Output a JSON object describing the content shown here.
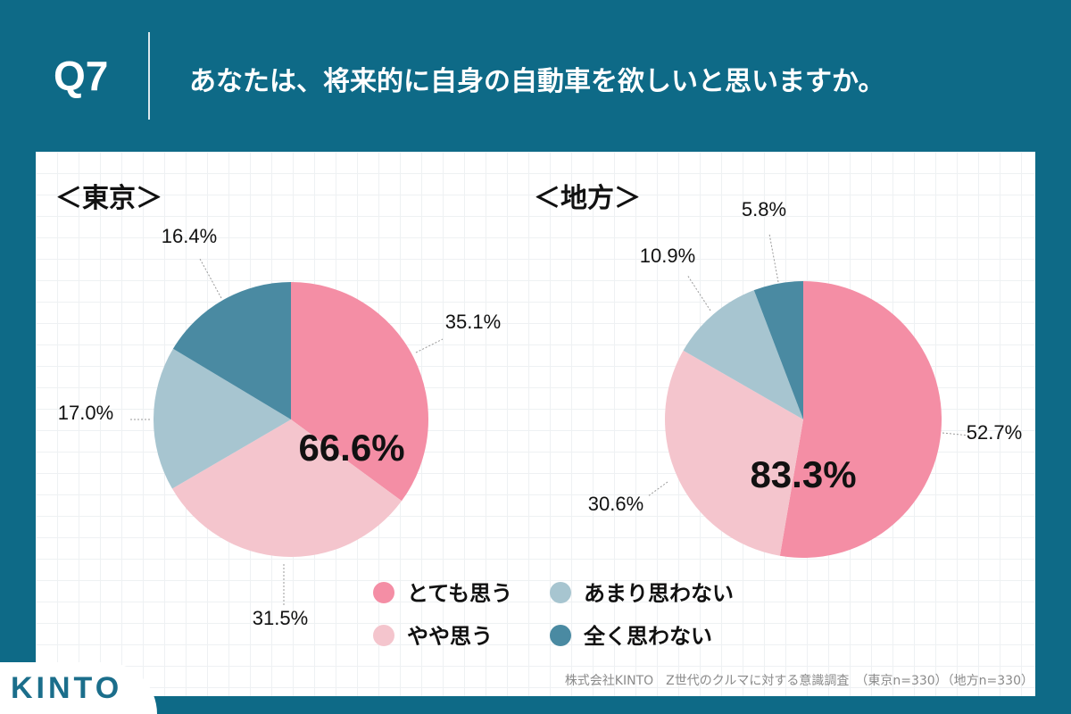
{
  "header": {
    "qnum": "Q7",
    "question": "あなたは、将来的に自身の自動車を欲しいと思いますか。"
  },
  "colors": {
    "header_bg": "#0e6a87",
    "very_much": "#f48ea5",
    "somewhat": "#f4c5cd",
    "not_much": "#a7c5d0",
    "not_at_all": "#4a8aa2"
  },
  "chart_data": [
    {
      "type": "pie",
      "title": "＜東京＞",
      "categories": [
        "とても思う",
        "やや思う",
        "あまり思わない",
        "全く思わない"
      ],
      "values": [
        35.1,
        31.5,
        17.0,
        16.4
      ],
      "value_labels": [
        "35.1%",
        "31.5%",
        "17.0%",
        "16.4%"
      ],
      "center_label": "66.6%"
    },
    {
      "type": "pie",
      "title": "＜地方＞",
      "categories": [
        "とても思う",
        "やや思う",
        "あまり思わない",
        "全く思わない"
      ],
      "values": [
        52.7,
        30.6,
        10.9,
        5.8
      ],
      "value_labels": [
        "52.7%",
        "30.6%",
        "10.9%",
        "5.8%"
      ],
      "center_label": "83.3%"
    }
  ],
  "legend": {
    "items": [
      {
        "label": "とても思う",
        "color": "#f48ea5"
      },
      {
        "label": "あまり思わない",
        "color": "#a7c5d0"
      },
      {
        "label": "やや思う",
        "color": "#f4c5cd"
      },
      {
        "label": "全く思わない",
        "color": "#4a8aa2"
      }
    ]
  },
  "footer": {
    "logo": "KINTO",
    "source": "株式会社KINTO　Z世代のクルマに対する意識調査　（東京n=330）（地方n=330）"
  }
}
